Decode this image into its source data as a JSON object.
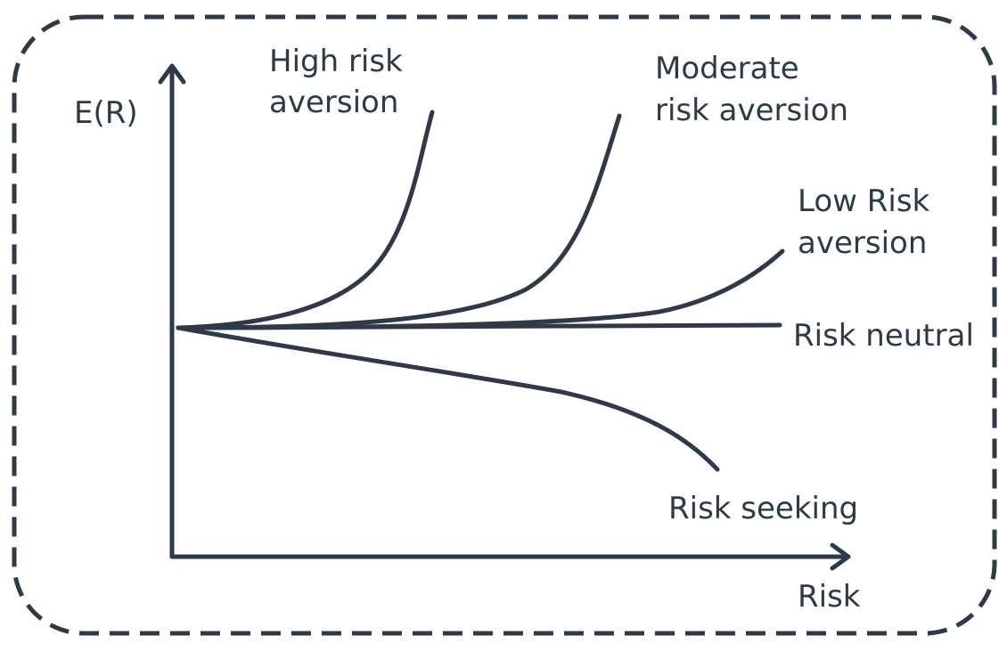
{
  "axes": {
    "y_label": "E(R)",
    "x_label": "Risk"
  },
  "curves": {
    "high": {
      "line1": "High risk",
      "line2": "aversion"
    },
    "moderate": {
      "line1": "Moderate",
      "line2": "risk aversion"
    },
    "low": {
      "line1": "Low Risk",
      "line2": "aversion"
    },
    "neutral": {
      "label": "Risk neutral"
    },
    "seeking": {
      "label": "Risk seeking"
    }
  },
  "colors": {
    "stroke": "#2e3a48",
    "background": "#ffffff"
  }
}
